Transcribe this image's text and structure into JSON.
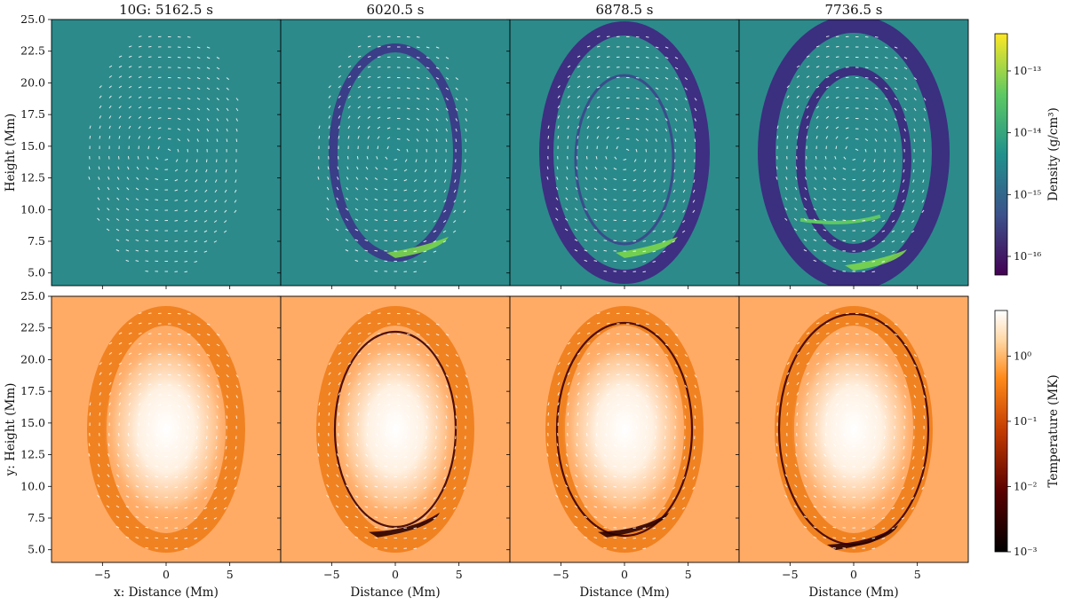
{
  "chart_data": {
    "type": "heatmap",
    "rows": [
      {
        "quantity": "density",
        "colorbar": {
          "label": "Density (g/cm$^3$)",
          "label_display": "Density (g/cm³)",
          "scale": "log",
          "range": [
            5e-17,
            4e-13
          ],
          "ticks": [
            "10⁻¹³",
            "10⁻¹⁴",
            "10⁻¹⁵",
            "10⁻¹⁶"
          ],
          "tick_values": [
            1e-13,
            1e-14,
            1e-15,
            1e-16
          ],
          "colormap": "viridis",
          "colors": [
            "#440154",
            "#3b528b",
            "#21918c",
            "#5ec962",
            "#fde725"
          ]
        },
        "ylabel": "Height (Mm)"
      },
      {
        "quantity": "temperature",
        "colorbar": {
          "label": "Temperature (MK)",
          "scale": "log",
          "range": [
            0.001,
            5
          ],
          "ticks": [
            "10⁰",
            "10⁻¹",
            "10⁻²",
            "10⁻³"
          ],
          "tick_values": [
            1,
            0.1,
            0.01,
            0.001
          ],
          "colormap": "gist_heat",
          "colors": [
            "#000000",
            "#5a0000",
            "#c23b00",
            "#ff8a1a",
            "#ffd9a8",
            "#ffffff"
          ]
        },
        "ylabel": "y: Height (Mm)"
      }
    ],
    "panels": [
      {
        "title": "10G: 5162.5 s",
        "time_s": 5162.5,
        "xlabel": "x: Distance (Mm)"
      },
      {
        "title": "6020.5 s",
        "time_s": 6020.5,
        "xlabel": "Distance (Mm)"
      },
      {
        "title": "6878.5 s",
        "time_s": 6878.5,
        "xlabel": "Distance (Mm)"
      },
      {
        "title": "7736.5 s",
        "time_s": 7736.5,
        "xlabel": "Distance (Mm)"
      }
    ],
    "xlim": [
      -9,
      9
    ],
    "ylim": [
      4,
      25
    ],
    "x_ticks": [
      -5,
      0,
      5
    ],
    "x_tick_labels": [
      "−5",
      "0",
      "5"
    ],
    "y_ticks": [
      5.0,
      7.5,
      10.0,
      12.5,
      15.0,
      17.5,
      20.0,
      22.5,
      25.0
    ],
    "y_tick_labels": [
      "5.0",
      "7.5",
      "10.0",
      "12.5",
      "15.0",
      "17.5",
      "20.0",
      "22.5",
      "25.0"
    ],
    "vector_overlay": "white velocity arrows",
    "grid": false
  }
}
